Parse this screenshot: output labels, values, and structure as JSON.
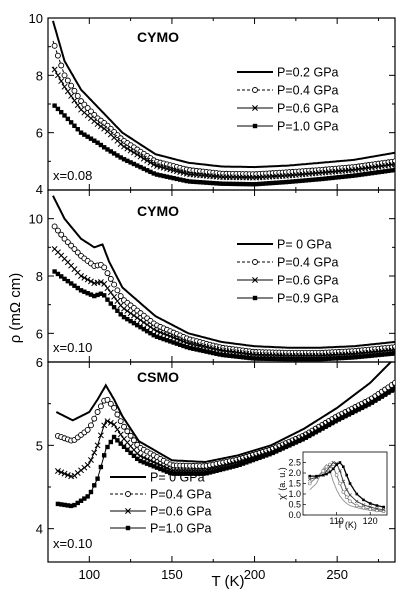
{
  "figure": {
    "xlabel": "T (K)",
    "ylabel": "ρ (mΩ cm)",
    "x_tick_labels": [
      "100",
      "150",
      "200",
      "250"
    ]
  },
  "chart_data": [
    {
      "type": "line",
      "title": "CYMO",
      "annotation": "x=0.08",
      "xlim": [
        75,
        285
      ],
      "ylim": [
        4,
        10
      ],
      "y_tick_labels": [
        "4",
        "6",
        "8",
        "10"
      ],
      "x": [
        78,
        85,
        95,
        105,
        110,
        120,
        140,
        160,
        180,
        200,
        220,
        240,
        260,
        285
      ],
      "series": [
        {
          "name": "P=0.2 GPa",
          "marker": "none",
          "values": [
            9.9,
            8.5,
            7.5,
            6.9,
            6.6,
            6.0,
            5.25,
            4.95,
            4.82,
            4.8,
            4.85,
            4.95,
            5.05,
            5.3
          ]
        },
        {
          "name": "P=0.4 GPa",
          "marker": "circle",
          "values": [
            9.2,
            8.0,
            7.1,
            6.5,
            6.3,
            5.75,
            5.0,
            4.7,
            4.57,
            4.55,
            4.62,
            4.7,
            4.8,
            5.0
          ]
        },
        {
          "name": "P=0.6 GPa",
          "marker": "x",
          "values": [
            8.3,
            7.6,
            6.8,
            6.3,
            6.1,
            5.55,
            4.85,
            4.55,
            4.45,
            4.43,
            4.5,
            4.6,
            4.7,
            4.9
          ]
        },
        {
          "name": "P=1.0 GPa",
          "marker": "square",
          "values": [
            7.0,
            6.6,
            6.0,
            5.65,
            5.45,
            5.1,
            4.55,
            4.3,
            4.22,
            4.2,
            4.28,
            4.38,
            4.5,
            4.7
          ]
        }
      ]
    },
    {
      "type": "line",
      "title": "CYMO",
      "annotation": "x=0.10",
      "xlim": [
        75,
        285
      ],
      "ylim": [
        5,
        11
      ],
      "y_tick_labels": [
        "6",
        "8",
        "10"
      ],
      "x": [
        78,
        85,
        95,
        103,
        108,
        112,
        120,
        140,
        160,
        180,
        200,
        220,
        240,
        260,
        285
      ],
      "series": [
        {
          "name": "P=  0 GPa",
          "marker": "none",
          "values": [
            10.8,
            10.0,
            9.3,
            9.0,
            9.1,
            8.5,
            7.6,
            6.6,
            6.0,
            5.7,
            5.55,
            5.5,
            5.5,
            5.55,
            5.7
          ]
        },
        {
          "name": "P=0.4 GPa",
          "marker": "circle",
          "values": [
            9.8,
            9.3,
            8.7,
            8.35,
            8.4,
            8.0,
            7.2,
            6.3,
            5.8,
            5.5,
            5.35,
            5.32,
            5.32,
            5.38,
            5.52
          ]
        },
        {
          "name": "P=0.6 GPa",
          "marker": "x",
          "values": [
            9.0,
            8.6,
            8.0,
            7.75,
            7.8,
            7.5,
            6.9,
            6.1,
            5.65,
            5.4,
            5.25,
            5.22,
            5.22,
            5.28,
            5.42
          ]
        },
        {
          "name": "P=0.9 GPa",
          "marker": "square",
          "values": [
            8.2,
            7.9,
            7.5,
            7.3,
            7.4,
            7.1,
            6.6,
            5.9,
            5.5,
            5.25,
            5.12,
            5.1,
            5.1,
            5.16,
            5.3
          ]
        }
      ]
    },
    {
      "type": "line",
      "title": "CSMO",
      "annotation": "x=0.10",
      "xlim": [
        75,
        285
      ],
      "ylim": [
        3.6,
        6.0
      ],
      "y_tick_labels": [
        "4",
        "5",
        "6"
      ],
      "x": [
        80,
        90,
        100,
        105,
        110,
        115,
        120,
        130,
        150,
        170,
        190,
        210,
        230,
        250,
        270,
        285
      ],
      "series": [
        {
          "name": "P=  0 GPa",
          "marker": "none",
          "values": [
            5.4,
            5.3,
            5.4,
            5.55,
            5.72,
            5.55,
            5.35,
            5.05,
            4.82,
            4.8,
            4.88,
            5.0,
            5.2,
            5.45,
            5.75,
            6.05
          ]
        },
        {
          "name": "P=0.4 GPa",
          "marker": "circle",
          "values": [
            5.12,
            5.05,
            5.2,
            5.4,
            5.57,
            5.45,
            5.25,
            4.98,
            4.76,
            4.75,
            4.83,
            4.95,
            5.12,
            5.35,
            5.55,
            5.75
          ]
        },
        {
          "name": "P=0.6 GPa",
          "marker": "x",
          "values": [
            4.7,
            4.62,
            4.78,
            5.0,
            5.3,
            5.25,
            5.1,
            4.88,
            4.7,
            4.7,
            4.8,
            4.92,
            5.1,
            5.32,
            5.52,
            5.7
          ]
        },
        {
          "name": "P=1.0 GPa",
          "marker": "square",
          "values": [
            4.3,
            4.27,
            4.4,
            4.6,
            4.95,
            5.1,
            5.0,
            4.82,
            4.66,
            4.66,
            4.76,
            4.9,
            5.08,
            5.3,
            5.5,
            5.68
          ]
        }
      ],
      "inset": {
        "type": "line",
        "xlabel": "T (K)",
        "ylabel": "χ' (a. u.)",
        "xlim": [
          100,
          125
        ],
        "ylim": [
          0,
          3.0
        ],
        "x_tick_labels": [
          "110",
          "120"
        ],
        "y_tick_labels": [
          "0.0",
          "0.5",
          "1.0",
          "1.5",
          "2.0",
          "2.5"
        ],
        "x": [
          102,
          104,
          106,
          107,
          108,
          109,
          110,
          111,
          112,
          113,
          114,
          116,
          118,
          120,
          122,
          124
        ],
        "series": [
          {
            "values": [
              1.2,
              1.5,
              2.2,
              2.4,
              2.1,
              1.6,
              1.2,
              0.9,
              0.7,
              0.55,
              0.45,
              0.35,
              0.28,
              0.22,
              0.18,
              0.15
            ]
          },
          {
            "values": [
              1.5,
              1.8,
              2.1,
              2.3,
              2.4,
              2.3,
              1.9,
              1.5,
              1.1,
              0.85,
              0.65,
              0.45,
              0.35,
              0.28,
              0.22,
              0.18
            ]
          },
          {
            "values": [
              1.7,
              1.8,
              1.9,
              2.1,
              2.3,
              2.5,
              2.45,
              2.1,
              1.6,
              1.2,
              0.95,
              0.65,
              0.48,
              0.38,
              0.3,
              0.25
            ]
          },
          {
            "values": [
              1.85,
              1.85,
              1.9,
              1.95,
              2.05,
              2.2,
              2.4,
              2.5,
              2.3,
              1.9,
              1.5,
              1.0,
              0.72,
              0.55,
              0.45,
              0.38
            ]
          }
        ]
      }
    }
  ]
}
